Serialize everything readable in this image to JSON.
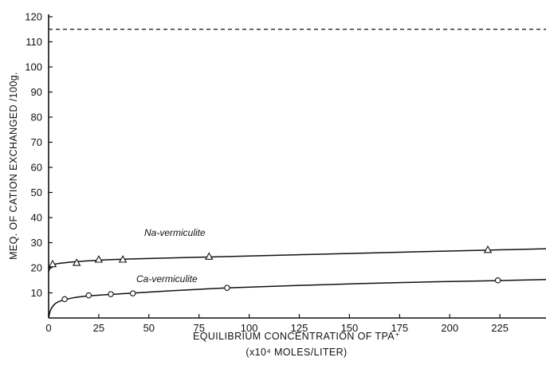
{
  "chart_data": {
    "type": "line",
    "xlabel": "EQUILIBRIUM CONCENTRATION OF TPA⁺",
    "xlabel_line2": "(x10⁴ MOLES/LITER)",
    "ylabel": "MEQ. OF CATION EXCHANGED /100g.",
    "xlim": [
      0,
      248
    ],
    "ylim": [
      0,
      120
    ],
    "x_ticks": [
      0,
      25,
      50,
      75,
      100,
      125,
      150,
      175,
      200,
      225
    ],
    "x_tick_labels": [
      "0",
      "25",
      "50",
      "75",
      "100",
      "125",
      "150",
      "175",
      "200",
      "225"
    ],
    "y_ticks": [
      10,
      20,
      30,
      40,
      50,
      60,
      70,
      80,
      90,
      100,
      110,
      120
    ],
    "y_tick_labels": [
      "10",
      "20",
      "30",
      "40",
      "50",
      "60",
      "70",
      "80",
      "90",
      "100",
      "110",
      "120"
    ],
    "grid": false,
    "legend": "none",
    "reference_line": {
      "y": 115,
      "style": "dashed"
    },
    "series": [
      {
        "name": "Na-vermiculite",
        "marker": "triangle",
        "points": [
          {
            "x": 2,
            "y": 21.5
          },
          {
            "x": 14,
            "y": 22
          },
          {
            "x": 25,
            "y": 23.3
          },
          {
            "x": 37,
            "y": 23.3
          },
          {
            "x": 80,
            "y": 24.5
          },
          {
            "x": 219,
            "y": 27.2
          }
        ],
        "curve": [
          {
            "x": 0,
            "y": 18.5
          },
          {
            "x": 1,
            "y": 20.3
          },
          {
            "x": 3,
            "y": 21.4
          },
          {
            "x": 8,
            "y": 22
          },
          {
            "x": 15,
            "y": 22.5
          },
          {
            "x": 25,
            "y": 23
          },
          {
            "x": 40,
            "y": 23.5
          },
          {
            "x": 80,
            "y": 24.3
          },
          {
            "x": 125,
            "y": 25.2
          },
          {
            "x": 175,
            "y": 26.2
          },
          {
            "x": 219,
            "y": 27
          },
          {
            "x": 248,
            "y": 27.6
          }
        ]
      },
      {
        "name": "Ca-vermiculite",
        "marker": "circle",
        "points": [
          {
            "x": 8,
            "y": 7.5
          },
          {
            "x": 20,
            "y": 9
          },
          {
            "x": 31,
            "y": 9.5
          },
          {
            "x": 42,
            "y": 9.8
          },
          {
            "x": 89,
            "y": 12
          },
          {
            "x": 224,
            "y": 15
          }
        ],
        "curve": [
          {
            "x": 0,
            "y": 0
          },
          {
            "x": 1,
            "y": 3.2
          },
          {
            "x": 3,
            "y": 5.5
          },
          {
            "x": 6,
            "y": 6.8
          },
          {
            "x": 12,
            "y": 8
          },
          {
            "x": 20,
            "y": 8.8
          },
          {
            "x": 31,
            "y": 9.4
          },
          {
            "x": 42,
            "y": 9.9
          },
          {
            "x": 60,
            "y": 10.8
          },
          {
            "x": 89,
            "y": 12
          },
          {
            "x": 125,
            "y": 13
          },
          {
            "x": 175,
            "y": 14.1
          },
          {
            "x": 224,
            "y": 14.9
          },
          {
            "x": 248,
            "y": 15.3
          }
        ]
      }
    ]
  }
}
